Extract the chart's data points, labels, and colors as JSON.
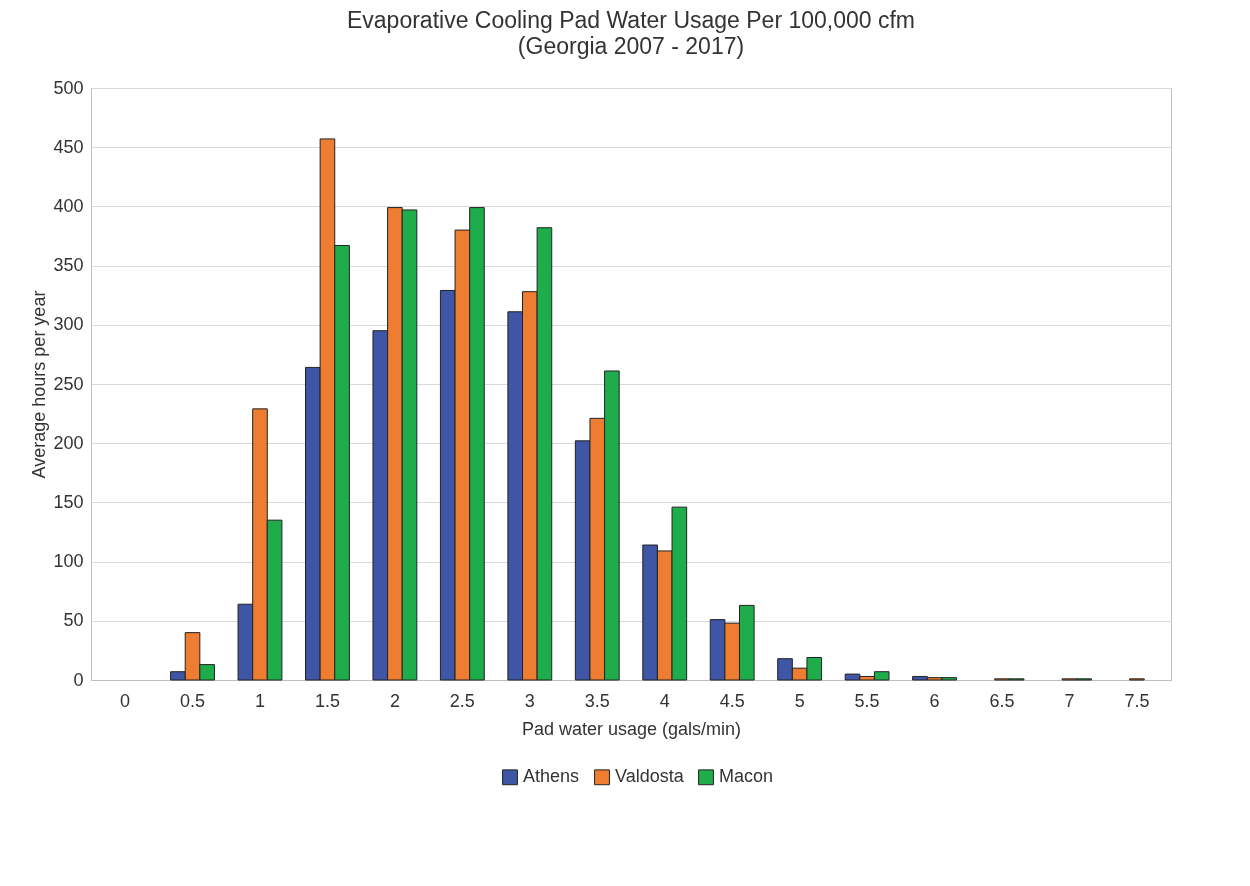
{
  "chart_data": {
    "type": "bar",
    "title": "Evaporative Cooling Pad Water Usage Per 100,000 cfm",
    "subtitle": "(Georgia 2007 - 2017)",
    "xlabel": "Pad water usage (gals/min)",
    "ylabel": "Average hours per year",
    "categories": [
      "0",
      "0.5",
      "1",
      "1.5",
      "2",
      "2.5",
      "3",
      "3.5",
      "4",
      "4.5",
      "5",
      "5.5",
      "6",
      "6.5",
      "7",
      "7.5"
    ],
    "series": [
      {
        "name": "Athens",
        "color": "#3f55a5",
        "values": [
          null,
          7,
          64,
          264,
          295,
          329,
          311,
          202,
          114,
          51,
          18,
          5,
          3,
          null,
          null,
          null
        ]
      },
      {
        "name": "Valdosta",
        "color": "#ee7d31",
        "values": [
          null,
          40,
          229,
          457,
          399,
          380,
          328,
          221,
          109,
          48,
          10,
          3,
          2,
          1,
          1,
          1
        ]
      },
      {
        "name": "Macon",
        "color": "#1fad4b",
        "values": [
          null,
          13,
          135,
          367,
          397,
          399,
          382,
          261,
          146,
          63,
          19,
          7,
          2,
          1,
          1,
          null
        ]
      }
    ],
    "ylim": [
      0,
      500
    ],
    "yticks": [
      0,
      50,
      100,
      150,
      200,
      250,
      300,
      350,
      400,
      450,
      500
    ],
    "grid": "y",
    "legend": "bottom"
  }
}
